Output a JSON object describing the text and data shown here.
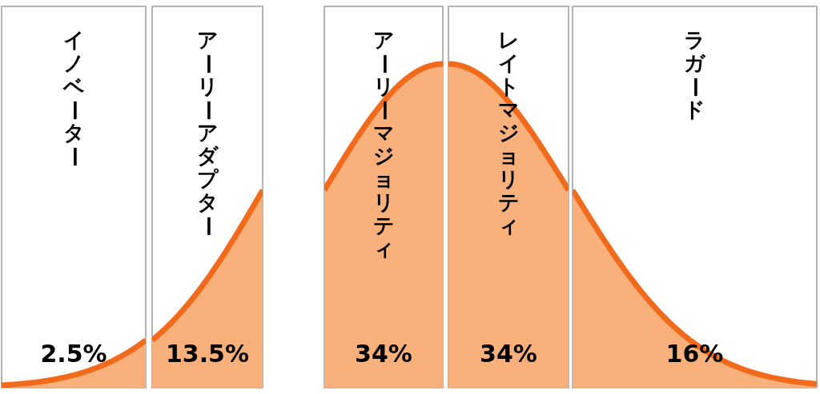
{
  "chart_data": {
    "type": "other",
    "categories": [
      "イノベーター",
      "アーリーアダプター",
      "アーリーマジョリティ",
      "レイトマジョリティ",
      "ラガード"
    ],
    "values": [
      2.5,
      13.5,
      34,
      34,
      16
    ],
    "value_labels": [
      "2.5%",
      "13.5%",
      "34%",
      "34%",
      "16%"
    ],
    "color": "#f9b07a"
  }
}
